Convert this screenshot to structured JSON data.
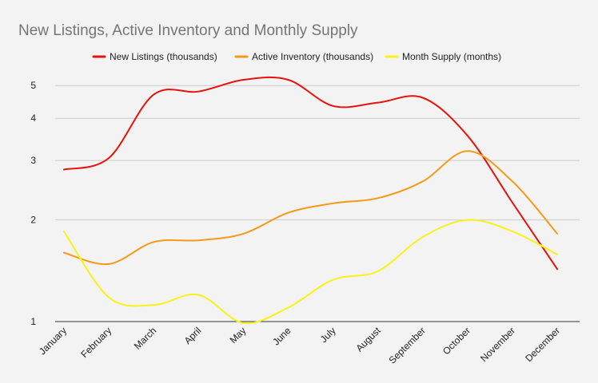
{
  "chart_data": {
    "type": "line",
    "title": "New Listings, Active Inventory and Monthly Supply",
    "xlabel": "",
    "ylabel": "",
    "yscale": "log",
    "ylim": [
      1,
      5.2
    ],
    "y_ticks": [
      1,
      2,
      3,
      4,
      5
    ],
    "grid": true,
    "smooth": true,
    "legend_position": "top",
    "categories": [
      "January",
      "February",
      "March",
      "April",
      "May",
      "June",
      "July",
      "August",
      "September",
      "October",
      "November",
      "December"
    ],
    "series": [
      {
        "name": "New Listings (thousands)",
        "color": "#e8120c",
        "values": [
          2.82,
          3.05,
          4.7,
          4.8,
          5.2,
          5.2,
          4.35,
          4.45,
          4.6,
          3.55,
          2.25,
          1.43
        ]
      },
      {
        "name": "Active Inventory (thousands)",
        "color": "#f59a16",
        "values": [
          1.6,
          1.48,
          1.72,
          1.74,
          1.82,
          2.1,
          2.24,
          2.32,
          2.6,
          3.2,
          2.6,
          1.82
        ]
      },
      {
        "name": "Month Supply (months)",
        "color": "#f8f21a",
        "values": [
          1.85,
          1.18,
          1.12,
          1.2,
          0.99,
          1.1,
          1.33,
          1.41,
          1.78,
          2.0,
          1.85,
          1.58
        ]
      }
    ]
  }
}
